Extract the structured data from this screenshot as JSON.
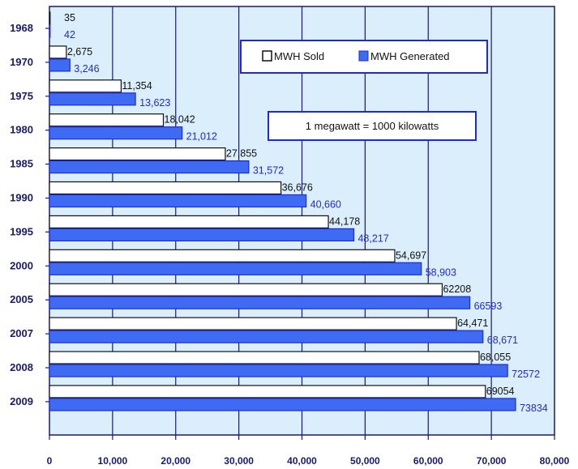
{
  "chart_data": {
    "type": "bar",
    "orientation": "horizontal",
    "categories": [
      "1968",
      "1970",
      "1975",
      "1980",
      "1985",
      "1990",
      "1995",
      "2000",
      "2005",
      "2007",
      "2008",
      "2009"
    ],
    "series": [
      {
        "name": "MWH Sold",
        "values": [
          35,
          2675,
          11354,
          18042,
          27855,
          36676,
          44178,
          54697,
          62208,
          64471,
          68055,
          69054
        ],
        "labels": [
          "35",
          "2,675",
          "11,354",
          "18,042",
          "27,855",
          "36,676",
          "44,178",
          "54,697",
          "62208",
          "64,471",
          "68,055",
          "69054"
        ],
        "color": "#ffffff",
        "label_color": "#111111"
      },
      {
        "name": "MWH Generated",
        "values": [
          42,
          3246,
          13623,
          21012,
          31572,
          40660,
          48217,
          58903,
          66593,
          68671,
          72572,
          73834
        ],
        "labels": [
          "42",
          "3,246",
          "13,623",
          "21,012",
          "31,572",
          "40,660",
          "48,217",
          "58,903",
          "66593",
          "68,671",
          "72572",
          "73834"
        ],
        "color": "#3f6bf2",
        "label_color": "#1f2ad6"
      }
    ],
    "xlim": [
      0,
      80000
    ],
    "xticks": [
      0,
      10000,
      20000,
      30000,
      40000,
      50000,
      60000,
      70000,
      80000
    ],
    "xtick_labels": [
      "0",
      "10,000",
      "20,000",
      "30,000",
      "40,000",
      "50,000",
      "60,000",
      "70,000",
      "80,000"
    ],
    "grid": "vertical",
    "legend_position": "top-right",
    "annotation": "1 megawatt = 1000 kilowatts",
    "plot_background": "#dbeefb",
    "axis_color": "#1a1a6e"
  }
}
